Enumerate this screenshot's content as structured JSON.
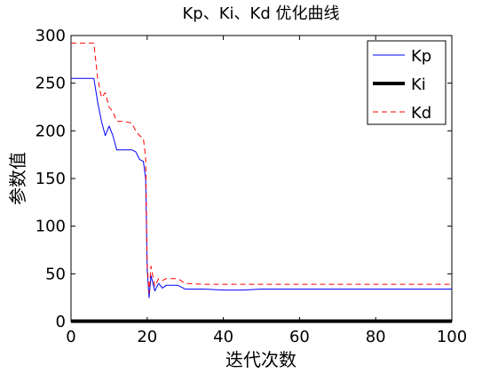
{
  "chart_data": {
    "type": "line",
    "title": "Kp、Ki、Kd 优化曲线",
    "xlabel": "迭代次数",
    "ylabel": "参数值",
    "xlim": [
      0,
      100
    ],
    "ylim": [
      0,
      300
    ],
    "xticks": [
      0,
      20,
      40,
      60,
      80,
      100
    ],
    "yticks": [
      0,
      50,
      100,
      150,
      200,
      250,
      300
    ],
    "grid": false,
    "legend_position": "top-right",
    "series": [
      {
        "name": "Kp",
        "color": "#0000ff",
        "style": "solid",
        "x": [
          0,
          6,
          7,
          8,
          9,
          10,
          11,
          12,
          14,
          16,
          17,
          18,
          19,
          19.6,
          20,
          20.5,
          21,
          22,
          23,
          24,
          25,
          28,
          30,
          35,
          40,
          45,
          50,
          60,
          70,
          80,
          90,
          100
        ],
        "y": [
          255,
          255,
          230,
          210,
          195,
          205,
          195,
          180,
          180,
          180,
          178,
          170,
          168,
          150,
          55,
          25,
          48,
          32,
          40,
          35,
          38,
          38,
          34,
          34,
          33,
          33,
          34,
          34,
          34,
          34,
          34,
          34
        ]
      },
      {
        "name": "Ki",
        "color": "#000000",
        "style": "solid",
        "x": [
          0,
          100
        ],
        "y": [
          0.3,
          0.3
        ]
      },
      {
        "name": "Kd",
        "color": "#ff0000",
        "style": "dashed",
        "x": [
          0,
          6,
          7,
          8,
          9,
          10,
          11,
          12,
          14,
          16,
          17,
          18,
          19,
          19.6,
          20,
          20.5,
          21,
          22,
          23,
          24,
          25,
          28,
          30,
          35,
          40,
          50,
          60,
          70,
          80,
          90,
          100
        ],
        "y": [
          292,
          292,
          255,
          235,
          240,
          225,
          220,
          210,
          210,
          208,
          200,
          195,
          192,
          172,
          60,
          30,
          58,
          37,
          45,
          43,
          45,
          45,
          40,
          39,
          39,
          39,
          39,
          39,
          39,
          39,
          39
        ]
      }
    ]
  }
}
